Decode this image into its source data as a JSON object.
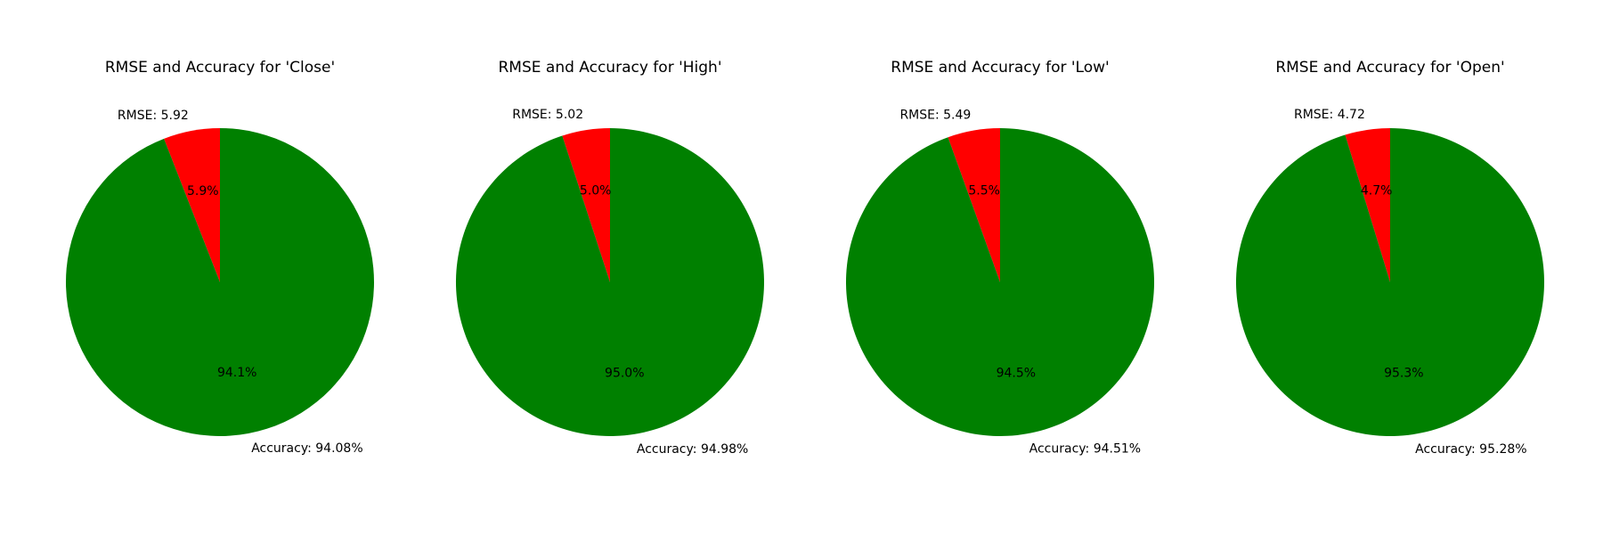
{
  "colors": {
    "rmse": "#ff0000",
    "accuracy": "#008000"
  },
  "chart_data": [
    {
      "type": "pie",
      "title": "RMSE and Accuracy for 'Close'",
      "slices": [
        {
          "key": "rmse",
          "label": "RMSE: 5.92",
          "value": 5.92,
          "pct_label": "5.9%",
          "color": "#ff0000"
        },
        {
          "key": "accuracy",
          "label": "Accuracy: 94.08%",
          "value": 94.08,
          "pct_label": "94.1%",
          "color": "#008000"
        }
      ]
    },
    {
      "type": "pie",
      "title": "RMSE and Accuracy for 'High'",
      "slices": [
        {
          "key": "rmse",
          "label": "RMSE: 5.02",
          "value": 5.02,
          "pct_label": "5.0%",
          "color": "#ff0000"
        },
        {
          "key": "accuracy",
          "label": "Accuracy: 94.98%",
          "value": 94.98,
          "pct_label": "95.0%",
          "color": "#008000"
        }
      ]
    },
    {
      "type": "pie",
      "title": "RMSE and Accuracy for 'Low'",
      "slices": [
        {
          "key": "rmse",
          "label": "RMSE: 5.49",
          "value": 5.49,
          "pct_label": "5.5%",
          "color": "#ff0000"
        },
        {
          "key": "accuracy",
          "label": "Accuracy: 94.51%",
          "value": 94.51,
          "pct_label": "94.5%",
          "color": "#008000"
        }
      ]
    },
    {
      "type": "pie",
      "title": "RMSE and Accuracy for 'Open'",
      "slices": [
        {
          "key": "rmse",
          "label": "RMSE: 4.72",
          "value": 4.72,
          "pct_label": "4.7%",
          "color": "#ff0000"
        },
        {
          "key": "accuracy",
          "label": "Accuracy: 95.28%",
          "value": 95.28,
          "pct_label": "95.3%",
          "color": "#008000"
        }
      ]
    }
  ]
}
